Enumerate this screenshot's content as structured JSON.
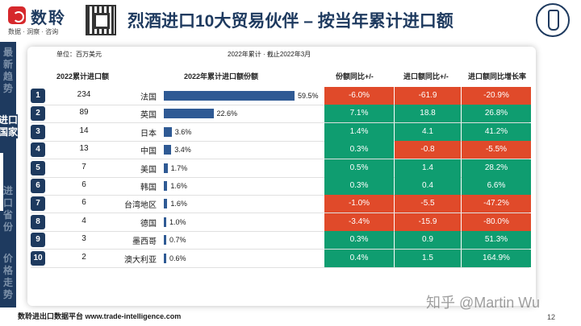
{
  "brand": {
    "name": "数聆",
    "tagline": "数据 · 洞察 · 咨询"
  },
  "title": "烈酒进口10大贸易伙伴 – 按当年累计进口额",
  "sidebar": {
    "items": [
      "最新趋势",
      "进口国家",
      "进口省份",
      "价格走势"
    ],
    "active_index": 1
  },
  "meta": {
    "unit": "单位：百万美元",
    "period": "2022年累计 · 截止2022年3月"
  },
  "columns": {
    "value": "2022累计进口额",
    "share": "2022年累计进口额份额",
    "share_yoy": "份额同比+/-",
    "value_yoy": "进口额同比+/-",
    "growth": "进口额同比增长率"
  },
  "rows": [
    {
      "rank": "1",
      "value": "234",
      "country": "法国",
      "share": 59.5,
      "share_label": "59.5%",
      "share_yoy": "-6.0%",
      "share_yoy_pos": false,
      "value_yoy": "-61.9",
      "value_yoy_pos": false,
      "growth": "-20.9%",
      "growth_pos": false
    },
    {
      "rank": "2",
      "value": "89",
      "country": "英国",
      "share": 22.6,
      "share_label": "22.6%",
      "share_yoy": "7.1%",
      "share_yoy_pos": true,
      "value_yoy": "18.8",
      "value_yoy_pos": true,
      "growth": "26.8%",
      "growth_pos": true
    },
    {
      "rank": "3",
      "value": "14",
      "country": "日本",
      "share": 3.6,
      "share_label": "3.6%",
      "share_yoy": "1.4%",
      "share_yoy_pos": true,
      "value_yoy": "4.1",
      "value_yoy_pos": true,
      "growth": "41.2%",
      "growth_pos": true
    },
    {
      "rank": "4",
      "value": "13",
      "country": "中国",
      "share": 3.4,
      "share_label": "3.4%",
      "share_yoy": "0.3%",
      "share_yoy_pos": true,
      "value_yoy": "-0.8",
      "value_yoy_pos": false,
      "growth": "-5.5%",
      "growth_pos": false
    },
    {
      "rank": "5",
      "value": "7",
      "country": "美国",
      "share": 1.7,
      "share_label": "1.7%",
      "share_yoy": "0.5%",
      "share_yoy_pos": true,
      "value_yoy": "1.4",
      "value_yoy_pos": true,
      "growth": "28.2%",
      "growth_pos": true
    },
    {
      "rank": "6",
      "value": "6",
      "country": "韩国",
      "share": 1.6,
      "share_label": "1.6%",
      "share_yoy": "0.3%",
      "share_yoy_pos": true,
      "value_yoy": "0.4",
      "value_yoy_pos": true,
      "growth": "6.6%",
      "growth_pos": true
    },
    {
      "rank": "7",
      "value": "6",
      "country": "台湾地区",
      "share": 1.6,
      "share_label": "1.6%",
      "share_yoy": "-1.0%",
      "share_yoy_pos": false,
      "value_yoy": "-5.5",
      "value_yoy_pos": false,
      "growth": "-47.2%",
      "growth_pos": false
    },
    {
      "rank": "8",
      "value": "4",
      "country": "德国",
      "share": 1.0,
      "share_label": "1.0%",
      "share_yoy": "-3.4%",
      "share_yoy_pos": false,
      "value_yoy": "-15.9",
      "value_yoy_pos": false,
      "growth": "-80.0%",
      "growth_pos": false
    },
    {
      "rank": "9",
      "value": "3",
      "country": "墨西哥",
      "share": 0.7,
      "share_label": "0.7%",
      "share_yoy": "0.3%",
      "share_yoy_pos": true,
      "value_yoy": "0.9",
      "value_yoy_pos": true,
      "growth": "51.3%",
      "growth_pos": true
    },
    {
      "rank": "10",
      "value": "2",
      "country": "澳大利亚",
      "share": 0.6,
      "share_label": "0.6%",
      "share_yoy": "0.4%",
      "share_yoy_pos": true,
      "value_yoy": "1.5",
      "value_yoy_pos": true,
      "growth": "164.9%",
      "growth_pos": true
    }
  ],
  "colors": {
    "navy": "#1e3a5f",
    "positive": "#0f9d70",
    "negative": "#e04a2a",
    "bar": "#2f5a94"
  },
  "footer": "数聆进出口数据平台 www.trade-intelligence.com",
  "page_number": "12",
  "watermark": "知乎 @Martin Wu"
}
